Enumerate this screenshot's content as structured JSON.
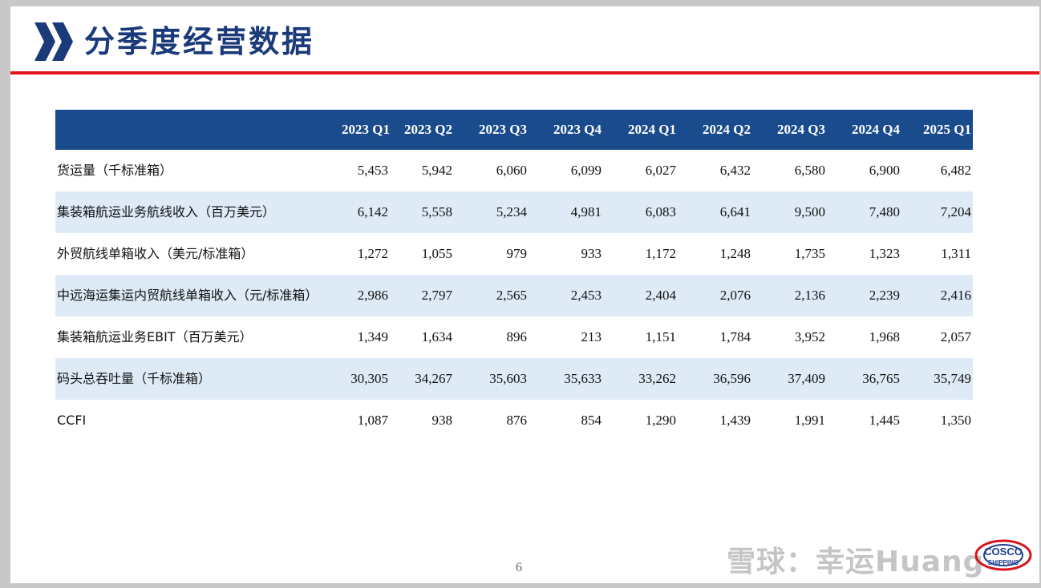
{
  "slide": {
    "title": "分季度经营数据",
    "page_number": "6"
  },
  "table": {
    "headers": [
      "",
      "2023 Q1",
      "2023 Q2",
      "2023 Q3",
      "2023 Q4",
      "2024 Q1",
      "2024 Q2",
      "2024 Q3",
      "2024 Q4",
      "2025 Q1"
    ],
    "rows": [
      {
        "label": "货运量（千标准箱）",
        "values": [
          "5,453",
          "5,942",
          "6,060",
          "6,099",
          "6,027",
          "6,432",
          "6,580",
          "6,900",
          "6,482"
        ]
      },
      {
        "label": "集装箱航运业务航线收入（百万美元）",
        "values": [
          "6,142",
          "5,558",
          "5,234",
          "4,981",
          "6,083",
          "6,641",
          "9,500",
          "7,480",
          "7,204"
        ]
      },
      {
        "label": "外贸航线单箱收入（美元/标准箱）",
        "values": [
          "1,272",
          "1,055",
          "979",
          "933",
          "1,172",
          "1,248",
          "1,735",
          "1,323",
          "1,311"
        ]
      },
      {
        "label": "中远海运集运内贸航线单箱收入（元/标准箱）",
        "values": [
          "2,986",
          "2,797",
          "2,565",
          "2,453",
          "2,404",
          "2,076",
          "2,136",
          "2,239",
          "2,416"
        ]
      },
      {
        "label": "集装箱航运业务EBIT（百万美元）",
        "values": [
          "1,349",
          "1,634",
          "896",
          "213",
          "1,151",
          "1,784",
          "3,952",
          "1,968",
          "2,057"
        ]
      },
      {
        "label": "码头总吞吐量（千标准箱）",
        "values": [
          "30,305",
          "34,267",
          "35,603",
          "35,633",
          "33,262",
          "36,596",
          "37,409",
          "36,765",
          "35,749"
        ]
      },
      {
        "label": "CCFI",
        "values": [
          "1,087",
          "938",
          "876",
          "854",
          "1,290",
          "1,439",
          "1,991",
          "1,445",
          "1,350"
        ]
      }
    ]
  },
  "watermark": {
    "text": "雪球：幸运Huang"
  },
  "logo": {
    "line1": "COSCO",
    "line2": "SHIPPING"
  },
  "colors": {
    "title": "#1b3a7a",
    "header_bg": "#1a4b8c",
    "row_shade": "#deebf7",
    "rule": "#e3131b",
    "logo_red": "#d7141c",
    "logo_blue": "#1d3f8f"
  },
  "icons": {
    "title_marker": "double-chevron-right-icon"
  }
}
